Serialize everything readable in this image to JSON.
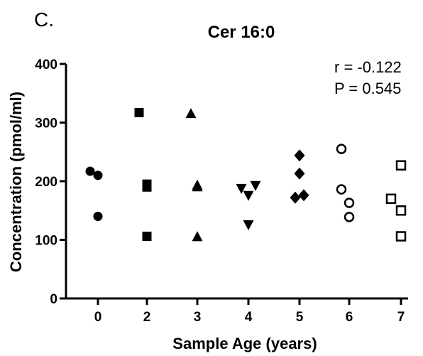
{
  "panel_label": "C.",
  "annotations": {
    "r": "r = -0.122",
    "p": "P = 0.545"
  },
  "chart_data": {
    "type": "scatter",
    "title": "Cer 16:0",
    "xlabel": "Sample Age (years)",
    "ylabel": "Concentration (pmol/ml)",
    "categories": [
      "0",
      "2",
      "3",
      "4",
      "5",
      "6",
      "7"
    ],
    "ylim": [
      0,
      400
    ],
    "yticks": [
      0,
      100,
      200,
      300,
      400
    ],
    "grid": false,
    "legend": "none",
    "marker_color": "#000000",
    "series": [
      {
        "x": "0",
        "marker": "circle",
        "values": [
          217,
          210,
          140
        ]
      },
      {
        "x": "2",
        "marker": "square",
        "values": [
          317,
          195,
          190,
          106
        ]
      },
      {
        "x": "3",
        "marker": "triangle-up",
        "values": [
          315,
          193,
          190,
          105
        ]
      },
      {
        "x": "4",
        "marker": "triangle-down",
        "values": [
          188,
          193,
          176,
          126
        ]
      },
      {
        "x": "5",
        "marker": "diamond",
        "values": [
          244,
          213,
          176,
          172
        ]
      },
      {
        "x": "6",
        "marker": "circle-open",
        "values": [
          255,
          186,
          163,
          139
        ]
      },
      {
        "x": "7",
        "marker": "square-open",
        "values": [
          227,
          170,
          150,
          106
        ]
      }
    ]
  }
}
